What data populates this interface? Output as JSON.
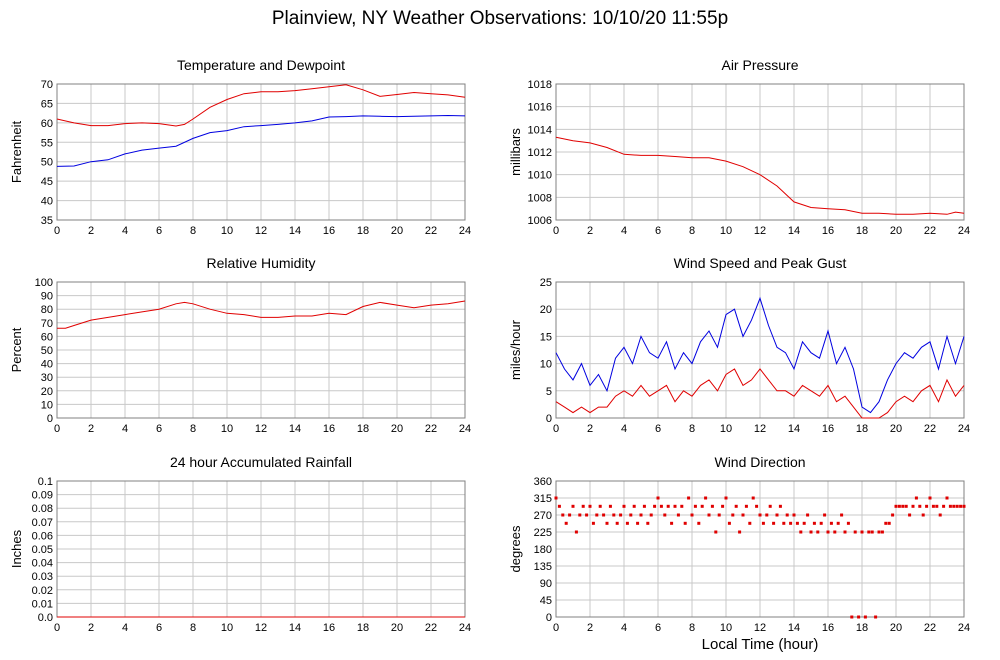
{
  "page": {
    "title": "Plainview, NY Weather Observations: 10/10/20 11:55p",
    "xaxis_label": "Local Time (hour)"
  },
  "colors": {
    "red": "#e00000",
    "blue": "#0000e0",
    "grid": "#c8c8c8"
  },
  "chart_data": [
    {
      "type": "line",
      "title": "Temperature and Dewpoint",
      "ylabel": "Fahrenheit",
      "xlabel": "",
      "xlim": [
        0,
        24
      ],
      "ylim": [
        35,
        70
      ],
      "xticks": [
        0,
        2,
        4,
        6,
        8,
        10,
        12,
        14,
        16,
        18,
        20,
        22,
        24
      ],
      "yticks": [
        35,
        40,
        45,
        50,
        55,
        60,
        65,
        70
      ],
      "grid": true,
      "series": [
        {
          "color": "#e00000",
          "x": [
            0,
            1,
            2,
            3,
            4,
            5,
            6,
            7,
            7.5,
            8,
            9,
            10,
            11,
            12,
            13,
            14,
            15,
            16,
            17,
            18,
            19,
            20,
            21,
            22,
            23,
            24
          ],
          "y": [
            61,
            60,
            59.3,
            59.3,
            59.8,
            60,
            59.8,
            59.2,
            59.6,
            61,
            64,
            66,
            67.5,
            68,
            68,
            68.3,
            68.8,
            69.3,
            69.8,
            68.5,
            66.8,
            67.3,
            67.8,
            67.5,
            67.2,
            66.6
          ]
        },
        {
          "color": "#0000e0",
          "x": [
            0,
            1,
            2,
            3,
            4,
            5,
            6,
            7,
            8,
            9,
            10,
            11,
            12,
            13,
            14,
            15,
            16,
            17,
            18,
            19,
            20,
            21,
            22,
            23,
            24
          ],
          "y": [
            48.8,
            48.9,
            50,
            50.5,
            52,
            53,
            53.5,
            54,
            56,
            57.5,
            58,
            59,
            59.3,
            59.6,
            60,
            60.5,
            61.5,
            61.6,
            61.8,
            61.7,
            61.6,
            61.7,
            61.8,
            61.9,
            61.8
          ]
        }
      ]
    },
    {
      "type": "line",
      "title": "Air Pressure",
      "ylabel": "millibars",
      "xlabel": "",
      "xlim": [
        0,
        24
      ],
      "ylim": [
        1006,
        1018
      ],
      "xticks": [
        0,
        2,
        4,
        6,
        8,
        10,
        12,
        14,
        16,
        18,
        20,
        22,
        24
      ],
      "yticks": [
        1006,
        1008,
        1010,
        1012,
        1014,
        1016,
        1018
      ],
      "grid": true,
      "series": [
        {
          "color": "#e00000",
          "x": [
            0,
            1,
            2,
            3,
            4,
            5,
            6,
            7,
            8,
            9,
            10,
            11,
            12,
            13,
            14,
            15,
            16,
            17,
            18,
            19,
            20,
            21,
            22,
            23,
            23.5,
            24
          ],
          "y": [
            1013.3,
            1013,
            1012.8,
            1012.4,
            1011.8,
            1011.7,
            1011.7,
            1011.6,
            1011.5,
            1011.5,
            1011.2,
            1010.7,
            1010,
            1009,
            1007.6,
            1007.1,
            1007,
            1006.9,
            1006.6,
            1006.6,
            1006.5,
            1006.5,
            1006.6,
            1006.5,
            1006.7,
            1006.6
          ]
        }
      ]
    },
    {
      "type": "line",
      "title": "Relative Humidity",
      "ylabel": "Percent",
      "xlabel": "",
      "xlim": [
        0,
        24
      ],
      "ylim": [
        0,
        100
      ],
      "xticks": [
        0,
        2,
        4,
        6,
        8,
        10,
        12,
        14,
        16,
        18,
        20,
        22,
        24
      ],
      "yticks": [
        0,
        10,
        20,
        30,
        40,
        50,
        60,
        70,
        80,
        90,
        100
      ],
      "grid": true,
      "series": [
        {
          "color": "#e00000",
          "x": [
            0,
            0.5,
            1,
            2,
            3,
            4,
            5,
            6,
            7,
            7.5,
            8,
            9,
            10,
            11,
            12,
            13,
            14,
            15,
            16,
            17,
            18,
            19,
            20,
            21,
            22,
            23,
            24
          ],
          "y": [
            66,
            66,
            68,
            72,
            74,
            76,
            78,
            80,
            84,
            85,
            84,
            80,
            77,
            76,
            74,
            74,
            75,
            75,
            77,
            76,
            82,
            85,
            83,
            81,
            83,
            84,
            86
          ]
        }
      ]
    },
    {
      "type": "line",
      "title": "Wind Speed and Peak Gust",
      "ylabel": "miles/hour",
      "xlabel": "",
      "xlim": [
        0,
        24
      ],
      "ylim": [
        0,
        25
      ],
      "xticks": [
        0,
        2,
        4,
        6,
        8,
        10,
        12,
        14,
        16,
        18,
        20,
        22,
        24
      ],
      "yticks": [
        0,
        5,
        10,
        15,
        20,
        25
      ],
      "grid": true,
      "series": [
        {
          "color": "#0000e0",
          "x": [
            0,
            0.5,
            1,
            1.5,
            2,
            2.5,
            3,
            3.5,
            4,
            4.5,
            5,
            5.5,
            6,
            6.5,
            7,
            7.5,
            8,
            8.5,
            9,
            9.5,
            10,
            10.5,
            11,
            11.5,
            12,
            12.5,
            13,
            13.5,
            14,
            14.5,
            15,
            15.5,
            16,
            16.5,
            17,
            17.5,
            18,
            18.5,
            19,
            19.5,
            20,
            20.5,
            21,
            21.5,
            22,
            22.5,
            23,
            23.5,
            24
          ],
          "y": [
            12,
            9,
            7,
            10,
            6,
            8,
            5,
            11,
            13,
            10,
            15,
            12,
            11,
            14,
            9,
            12,
            10,
            14,
            16,
            13,
            19,
            20,
            15,
            18,
            22,
            17,
            13,
            12,
            9,
            14,
            12,
            11,
            16,
            10,
            13,
            9,
            2,
            1,
            3,
            7,
            10,
            12,
            11,
            13,
            14,
            9,
            15,
            10,
            15
          ]
        },
        {
          "color": "#e00000",
          "x": [
            0,
            0.5,
            1,
            1.5,
            2,
            2.5,
            3,
            3.5,
            4,
            4.5,
            5,
            5.5,
            6,
            6.5,
            7,
            7.5,
            8,
            8.5,
            9,
            9.5,
            10,
            10.5,
            11,
            11.5,
            12,
            12.5,
            13,
            13.5,
            14,
            14.5,
            15,
            15.5,
            16,
            16.5,
            17,
            17.5,
            18,
            18.5,
            19,
            19.5,
            20,
            20.5,
            21,
            21.5,
            22,
            22.5,
            23,
            23.5,
            24
          ],
          "y": [
            3,
            2,
            1,
            2,
            1,
            2,
            2,
            4,
            5,
            4,
            6,
            4,
            5,
            6,
            3,
            5,
            4,
            6,
            7,
            5,
            8,
            9,
            6,
            7,
            9,
            7,
            5,
            5,
            4,
            6,
            5,
            4,
            6,
            3,
            4,
            2,
            0,
            0,
            0,
            1,
            3,
            4,
            3,
            5,
            6,
            3,
            7,
            4,
            6
          ]
        }
      ]
    },
    {
      "type": "line",
      "title": "24 hour Accumulated Rainfall",
      "ylabel": "Inches",
      "xlabel": "",
      "xlim": [
        0,
        24
      ],
      "ylim": [
        0,
        0.1
      ],
      "xticks": [
        0,
        2,
        4,
        6,
        8,
        10,
        12,
        14,
        16,
        18,
        20,
        22,
        24
      ],
      "yticks": [
        0.0,
        0.01,
        0.02,
        0.03,
        0.04,
        0.05,
        0.06,
        0.07,
        0.08,
        0.09,
        0.1
      ],
      "ytick_labels": [
        "0.0",
        "0.01",
        "0.02",
        "0.03",
        "0.04",
        "0.05",
        "0.06",
        "0.07",
        "0.08",
        "0.09",
        "0.1"
      ],
      "grid": true,
      "series": [
        {
          "color": "#e00000",
          "x": [
            0,
            24
          ],
          "y": [
            0,
            0
          ]
        }
      ]
    },
    {
      "type": "scatter",
      "title": "Wind Direction",
      "ylabel": "degrees",
      "xlabel": "",
      "xlim": [
        0,
        24
      ],
      "ylim": [
        0,
        360
      ],
      "xticks": [
        0,
        2,
        4,
        6,
        8,
        10,
        12,
        14,
        16,
        18,
        20,
        22,
        24
      ],
      "yticks": [
        0,
        45,
        90,
        135,
        180,
        225,
        270,
        315,
        360
      ],
      "grid": true,
      "series": [
        {
          "color": "#e00000",
          "x": [
            0,
            0.2,
            0.4,
            0.6,
            0.8,
            1.0,
            1.2,
            1.4,
            1.6,
            1.8,
            2.0,
            2.2,
            2.4,
            2.6,
            2.8,
            3.0,
            3.2,
            3.4,
            3.6,
            3.8,
            4.0,
            4.2,
            4.4,
            4.6,
            4.8,
            5.0,
            5.2,
            5.4,
            5.6,
            5.8,
            6.0,
            6.2,
            6.4,
            6.6,
            6.8,
            7.0,
            7.2,
            7.4,
            7.6,
            7.8,
            8.0,
            8.2,
            8.4,
            8.6,
            8.8,
            9.0,
            9.2,
            9.4,
            9.6,
            9.8,
            10.0,
            10.2,
            10.4,
            10.6,
            10.8,
            11.0,
            11.2,
            11.4,
            11.6,
            11.8,
            12.0,
            12.2,
            12.4,
            12.6,
            12.8,
            13.0,
            13.2,
            13.4,
            13.6,
            13.8,
            14.0,
            14.2,
            14.4,
            14.6,
            14.8,
            15.0,
            15.2,
            15.4,
            15.6,
            15.8,
            16.0,
            16.2,
            16.4,
            16.6,
            16.8,
            17.0,
            17.2,
            17.4,
            17.6,
            17.8,
            18.0,
            18.2,
            18.4,
            18.6,
            18.8,
            19.0,
            19.2,
            19.4,
            19.6,
            19.8,
            20.0,
            20.2,
            20.4,
            20.6,
            20.8,
            21.0,
            21.2,
            21.4,
            21.6,
            21.8,
            22.0,
            22.2,
            22.4,
            22.6,
            22.8,
            23.0,
            23.2,
            23.4,
            23.6,
            23.8,
            24.0
          ],
          "y": [
            315,
            293,
            270,
            248,
            270,
            293,
            225,
            270,
            293,
            270,
            293,
            248,
            270,
            293,
            270,
            248,
            293,
            270,
            248,
            270,
            293,
            248,
            270,
            293,
            248,
            270,
            293,
            248,
            270,
            293,
            315,
            293,
            270,
            293,
            248,
            293,
            270,
            293,
            248,
            315,
            270,
            293,
            248,
            293,
            315,
            270,
            293,
            225,
            270,
            293,
            315,
            248,
            270,
            293,
            225,
            270,
            293,
            248,
            315,
            293,
            270,
            248,
            270,
            293,
            248,
            270,
            293,
            248,
            270,
            248,
            270,
            248,
            225,
            248,
            270,
            225,
            248,
            225,
            248,
            270,
            225,
            248,
            225,
            248,
            270,
            225,
            248,
            0,
            225,
            0,
            225,
            0,
            225,
            225,
            0,
            225,
            225,
            248,
            248,
            270,
            293,
            293,
            293,
            293,
            270,
            293,
            315,
            293,
            270,
            293,
            315,
            293,
            293,
            270,
            293,
            315,
            293,
            293,
            293,
            293,
            293
          ]
        }
      ]
    }
  ]
}
